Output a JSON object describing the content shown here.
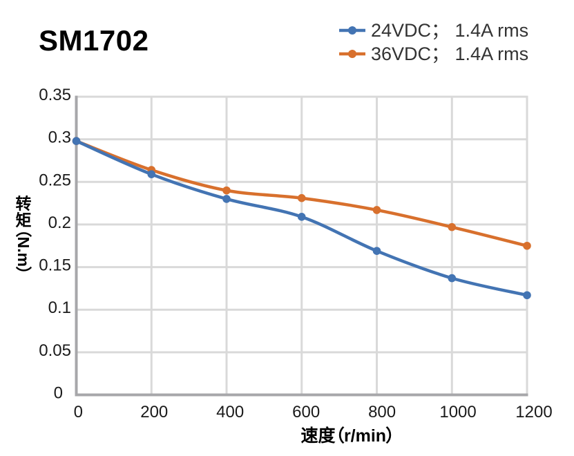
{
  "title": "SM1702",
  "legend": {
    "items": [
      {
        "label": "24VDC； 1.4A rms",
        "color": "#4374B3"
      },
      {
        "label": "36VDC； 1.4A rms",
        "color": "#D8702D"
      }
    ]
  },
  "colors": {
    "series_24vdc": "#4374B3",
    "series_36vdc": "#D8702D",
    "gridline": "#D9D9D9",
    "axis": "#A7A7AA",
    "tick_label": "#1A1A1A",
    "legend_text": "#333333",
    "title": "#000000",
    "background": "#FFFFFF"
  },
  "chart_data": {
    "type": "line",
    "title": "SM1702",
    "x": [
      0,
      200,
      400,
      600,
      800,
      1000,
      1200
    ],
    "series": [
      {
        "name": "24VDC； 1.4A rms",
        "color": "#4374B3",
        "values": [
          0.298,
          0.259,
          0.23,
          0.209,
          0.169,
          0.137,
          0.117
        ]
      },
      {
        "name": "36VDC； 1.4A rms",
        "color": "#D8702D",
        "values": [
          0.298,
          0.264,
          0.24,
          0.231,
          0.217,
          0.197,
          0.175
        ]
      }
    ],
    "xlabel": "速度（r/min）",
    "ylabel": "转矩（N.m）",
    "xlim": [
      0,
      1200
    ],
    "ylim": [
      0,
      0.35
    ],
    "x_ticks": [
      "0",
      "200",
      "400",
      "600",
      "800",
      "1000",
      "1200"
    ],
    "y_ticks": [
      "0",
      "0.05",
      "0.1",
      "0.15",
      "0.2",
      "0.25",
      "0.3",
      "0.35"
    ],
    "grid": true,
    "smooth": true,
    "legend_position": "top-right"
  }
}
